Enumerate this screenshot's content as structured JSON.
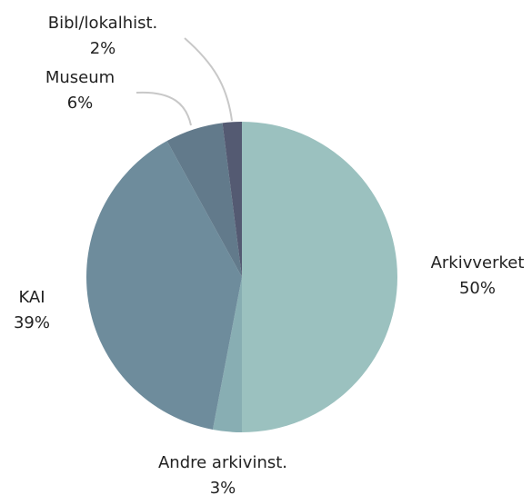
{
  "chart_data": {
    "type": "pie",
    "categories": [
      "Arkivverket",
      "Andre arkivinst.",
      "KAI",
      "Museum",
      "Bibl/lokalhist."
    ],
    "values": [
      50,
      3,
      39,
      6,
      2
    ],
    "value_labels": [
      "50%",
      "3%",
      "39%",
      "6%",
      "2%"
    ],
    "colors": [
      "#9bc1bf",
      "#88aeb3",
      "#6e8c9c",
      "#627a8b",
      "#545a72"
    ]
  }
}
